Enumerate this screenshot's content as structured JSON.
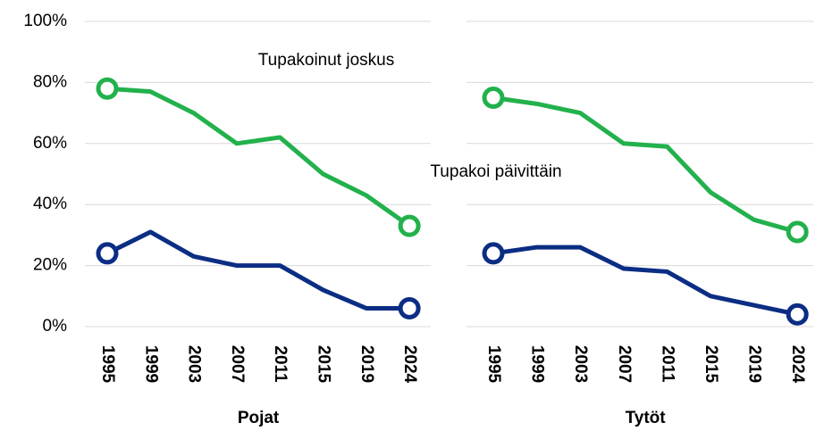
{
  "chart_data": {
    "type": "line",
    "categories": [
      "1995",
      "1999",
      "2003",
      "2007",
      "2011",
      "2015",
      "2019",
      "2024"
    ],
    "groups": [
      "Pojat",
      "Tytöt"
    ],
    "series": [
      {
        "name": "Tupakoinut joskus",
        "color": "#22b14c",
        "values": [
          [
            78,
            77,
            70,
            60,
            62,
            50,
            43,
            33
          ],
          [
            75,
            73,
            70,
            60,
            59,
            44,
            35,
            31
          ]
        ]
      },
      {
        "name": "Tupakoi päivittäin",
        "color": "#0b2d84",
        "values": [
          [
            24,
            31,
            23,
            20,
            20,
            12,
            6,
            6
          ],
          [
            24,
            26,
            26,
            19,
            18,
            10,
            7,
            4
          ]
        ]
      }
    ],
    "ylim": [
      0,
      100
    ],
    "yticks": [
      {
        "value": 0,
        "label": "0%"
      },
      {
        "value": 20,
        "label": "20%"
      },
      {
        "value": 40,
        "label": "40%"
      },
      {
        "value": 60,
        "label": "60%"
      },
      {
        "value": 80,
        "label": "80%"
      },
      {
        "value": 100,
        "label": "100%"
      }
    ],
    "grid": true
  }
}
